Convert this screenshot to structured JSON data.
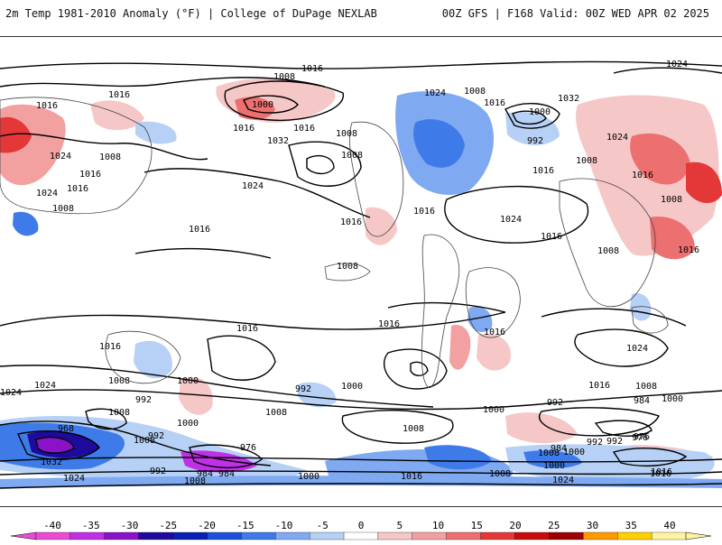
{
  "header": {
    "title_left": "2m Temp 1981-2010 Anomaly (°F) | College of DuPage NEXLAB",
    "title_right": "00Z GFS | F168 Valid: 00Z WED APR 02 2025"
  },
  "isobars": [
    "1016",
    "1008",
    "1016",
    "1024",
    "1016",
    "1016",
    "1008",
    "1016",
    "1024",
    "1008",
    "1016",
    "1024",
    "1000",
    "1016",
    "1032",
    "1016",
    "1008",
    "1016",
    "1008",
    "1024",
    "1016",
    "1016",
    "1024",
    "1024",
    "1008",
    "1032",
    "1016",
    "1000",
    "992",
    "1008",
    "1016",
    "1008",
    "1024",
    "1008",
    "1016",
    "1016",
    "1008",
    "1016",
    "1016",
    "1024",
    "1016",
    "1016",
    "1008",
    "1000",
    "1024",
    "992",
    "1008",
    "1000",
    "992",
    "1008",
    "1016",
    "1000",
    "1008",
    "992",
    "984",
    "1000",
    "992",
    "976",
    "968",
    "1008",
    "1032",
    "976",
    "984",
    "1008",
    "992",
    "1000",
    "1024",
    "1016",
    "1008",
    "1000",
    "1008",
    "1024",
    "984",
    "1000",
    "992",
    "976",
    "1016",
    "1024",
    "1008",
    "1000",
    "992",
    "984",
    "1016"
  ],
  "colorbar": {
    "ticks": [
      "-40",
      "-35",
      "-30",
      "-25",
      "-20",
      "-15",
      "-10",
      "-5",
      "0",
      "5",
      "10",
      "15",
      "20",
      "25",
      "30",
      "35",
      "40"
    ],
    "colors": [
      "#e94bd3",
      "#c030e6",
      "#8a12c8",
      "#1f0a9e",
      "#0a1fb4",
      "#1e4fd8",
      "#3f7be8",
      "#7fa9f0",
      "#b6d0f6",
      "#ffffff",
      "#f6c7c7",
      "#f2a0a0",
      "#ec7070",
      "#e43838",
      "#c80c0c",
      "#9c0000",
      "#ff9a00",
      "#ffd000",
      "#fff3a0"
    ]
  }
}
